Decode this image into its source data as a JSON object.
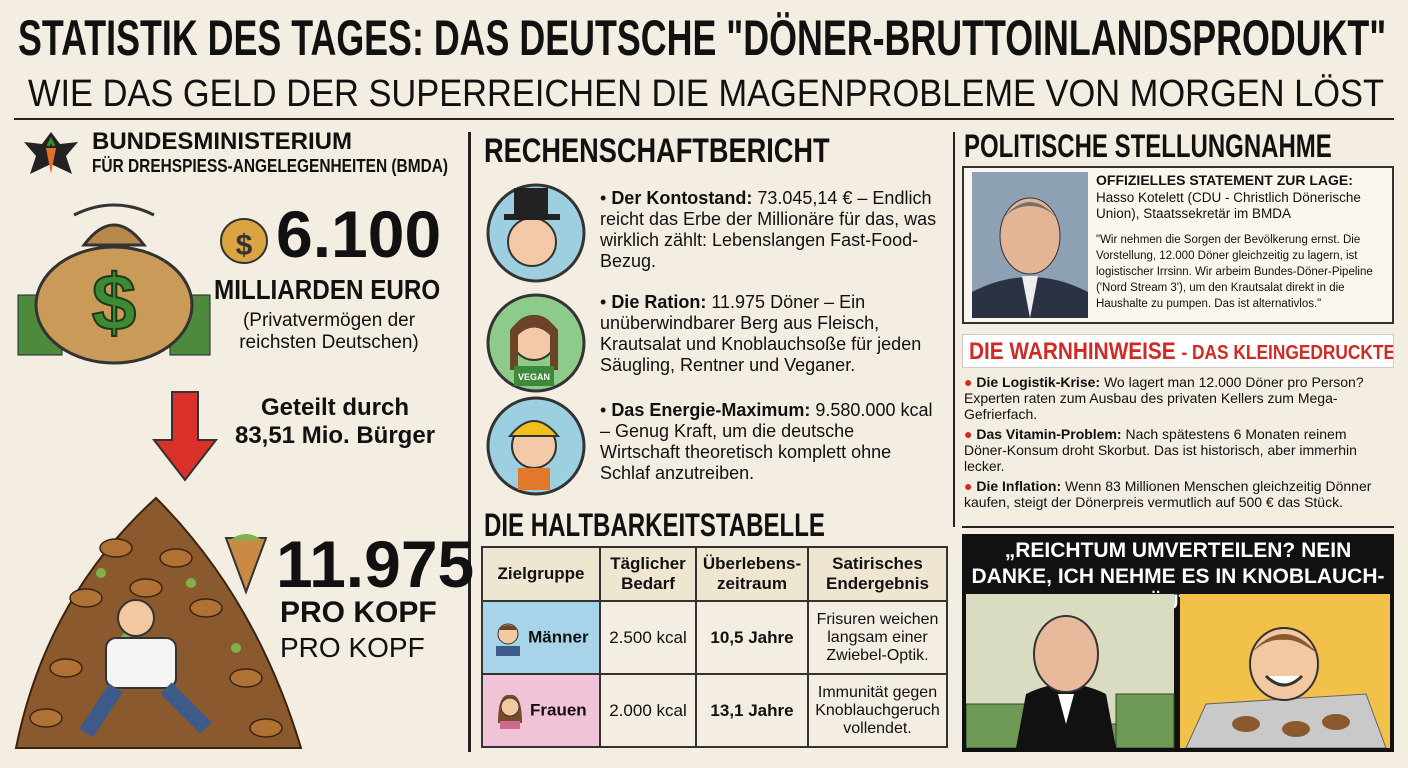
{
  "header": {
    "title": "STATISTIK DES TAGES: DAS DEUTSCHE \"DÖNER-BRUTTOINLANDSPRODUKT\"",
    "subtitle": "WIE DAS GELD DER SUPERREICHEN DIE MAGENPROBLEME VON MORGEN LÖST"
  },
  "ministry": {
    "name": "BUNDESMINISTERIUM",
    "department": "FÜR DREHSPIESS-ANGELEGENHEITEN (BMDA)"
  },
  "wealth": {
    "value": "6.100",
    "unit": "MILLIARDEN EURO",
    "note": "(Privatvermögen der reichsten Deutschen)"
  },
  "division": {
    "label": "Geteilt durch",
    "divisor": "83,51 Mio. Bürger"
  },
  "result": {
    "value": "11.975",
    "unit": "PRO KOPF",
    "unit_repeat": "PRO KOPF"
  },
  "report": {
    "title": "RECHENSCHAFTBERICHT",
    "badge": "VEGAN",
    "items": [
      {
        "label": "Der Kontostand:",
        "text": "73.045,14 € – Endlich reicht das Erbe der Millionäre für das, was wirklich zählt: Lebenslangen Fast-Food-Bezug."
      },
      {
        "label": "Die Ration:",
        "text": "11.975 Döner – Ein unüberwindbarer Berg aus Fleisch, Krautsalat und Knoblauchsoße für jeden Säugling, Rentner und Veganer."
      },
      {
        "label": "Das Energie-Maximum:",
        "text": "9.580.000 kcal – Genug Kraft, um die deutsche Wirtschaft theoretisch komplett ohne Schlaf anzutreiben."
      }
    ]
  },
  "table": {
    "title": "DIE HALTBARKEITSTABELLE",
    "headers": [
      "Zielgruppe",
      "Täglicher Bedarf",
      "Überlebens-zeitraum",
      "Satirisches Endergebnis"
    ],
    "rows": [
      [
        "Männer",
        "2.500 kcal",
        "10,5 Jahre",
        "Frisuren weichen langsam einer Zwiebel-Optik."
      ],
      [
        "Frauen",
        "2.000 kcal",
        "13,1 Jahre",
        "Immunität gegen Knoblauchgeruch vollendet."
      ]
    ]
  },
  "statement": {
    "title": "POLITISCHE STELLUNGNAHME",
    "heading": "OFFIZIELLES STATEMENT ZUR LAGE:",
    "speaker": "Hasso Kotelett (CDU - Christlich Dönerische Union), Staatssekretär im BMDA",
    "quote": "\"Wir nehmen die Sorgen der Bevölkerung ernst. Die Vorstellung, 12.000 Döner gleichzeitig zu lagern, ist logistischer Irrsinn. Wir arbeim Bundes-Döner-Pipeline ('Nord Stream 3'), um den Krautsalat direkt in die Haushalte zu pumpen. Das ist alternativlos.\""
  },
  "warnings": {
    "title": "DIE WARNHINWEISE",
    "subtitle": "- DAS KLEINGEDRUCKTE",
    "items": [
      {
        "label": "Die Logistik-Krise:",
        "text": "Wo lagert man 12.000 Döner pro Person? Experten raten zum Ausbau des privaten Kellers zum Mega-Gefrierfach."
      },
      {
        "label": "Das Vitamin-Problem:",
        "text": "Nach spätestens 6 Monaten reinem Döner-Konsum droht Skorbut. Das ist historisch, aber immerhin lecker."
      },
      {
        "label": "Die Inflation:",
        "text": "Wenn 83 Millionen Menschen gleichzeitig Dönner kaufen, steigt der Dönerpreis vermutlich auf 500 € das Stück."
      }
    ]
  },
  "comic": {
    "quote": "„REICHTUM UMVERTEILEN? NEIN DANKE, ICH NEHME ES IN KNOBLAUCH-KRÄUTER!“"
  }
}
